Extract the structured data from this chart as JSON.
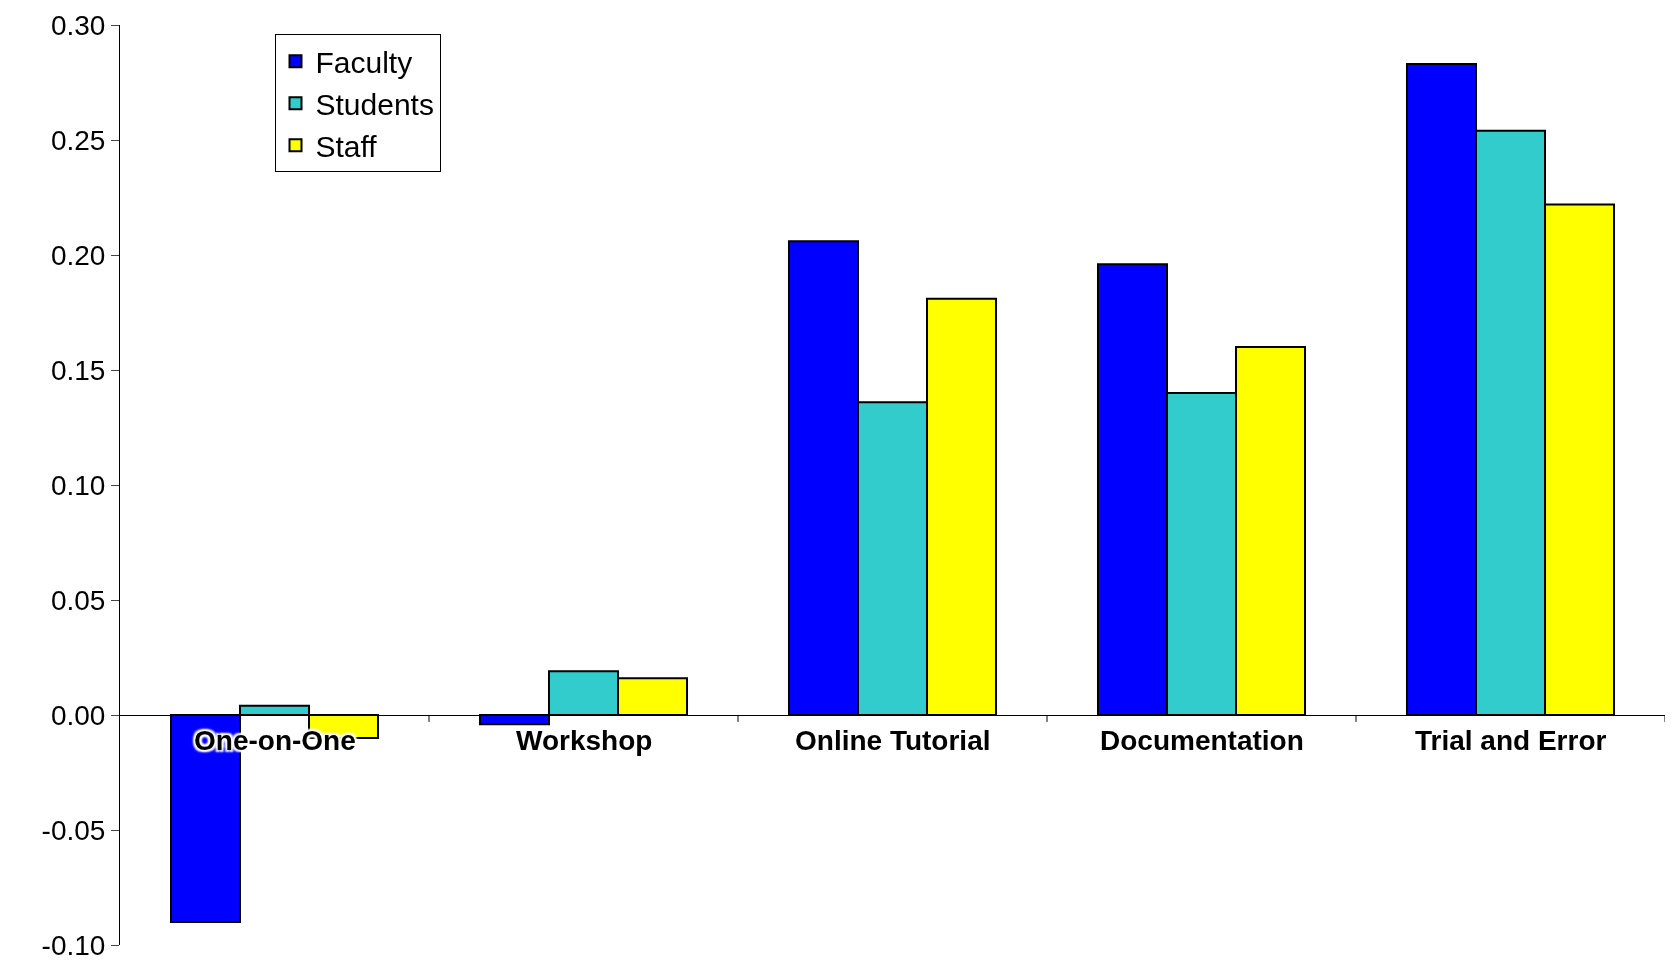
{
  "chart_data": {
    "type": "bar",
    "categories": [
      "One-on-One",
      "Workshop",
      "Online Tutorial",
      "Documentation",
      "Trial and Error"
    ],
    "series": [
      {
        "name": "Faculty",
        "color": "#0000ff",
        "values": [
          -0.09,
          -0.004,
          0.206,
          0.196,
          0.283
        ]
      },
      {
        "name": "Students",
        "color": "#33cccc",
        "values": [
          0.004,
          0.019,
          0.136,
          0.14,
          0.254
        ]
      },
      {
        "name": "Staff",
        "color": "#ffff00",
        "values": [
          -0.01,
          0.016,
          0.181,
          0.16,
          0.222
        ]
      }
    ],
    "ylim": [
      -0.1,
      0.3
    ],
    "yticks": [
      {
        "value": -0.1,
        "label": "-0.10"
      },
      {
        "value": -0.05,
        "label": "-0.05"
      },
      {
        "value": 0,
        "label": "0.00"
      },
      {
        "value": 0.05,
        "label": "0.05"
      },
      {
        "value": 0.1,
        "label": "0.10"
      },
      {
        "value": 0.15,
        "label": "0.15"
      },
      {
        "value": 0.2,
        "label": "0.20"
      },
      {
        "value": 0.25,
        "label": "0.25"
      },
      {
        "value": 0.3,
        "label": "0.30"
      }
    ],
    "legend": "top left"
  }
}
